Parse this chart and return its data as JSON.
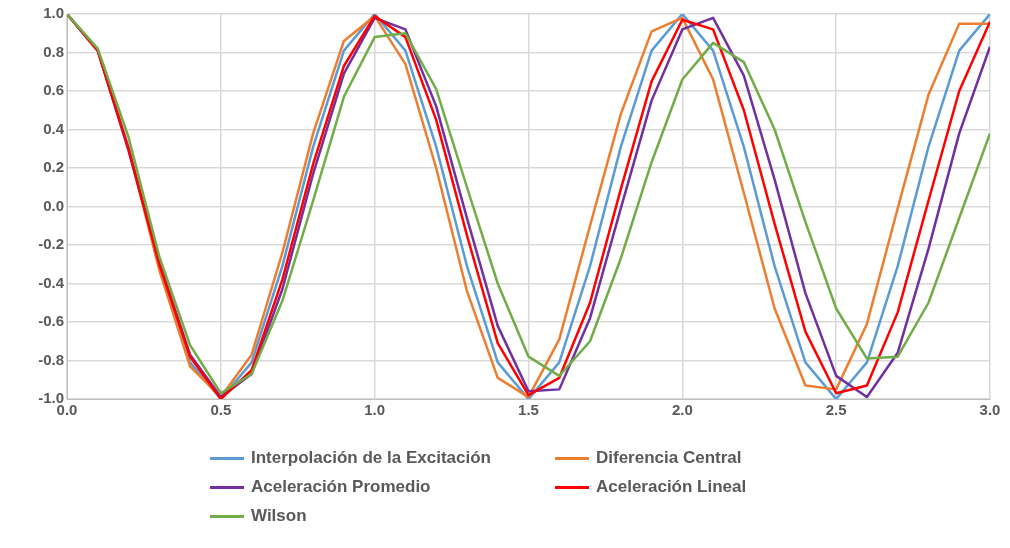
{
  "chart_data": {
    "type": "line",
    "x": [
      0,
      0.1,
      0.2,
      0.3,
      0.4,
      0.5,
      0.6,
      0.7,
      0.8,
      0.9,
      1,
      1.1,
      1.2,
      1.3,
      1.4,
      1.5,
      1.6,
      1.7,
      1.8,
      1.9,
      2,
      2.1,
      2.2,
      2.3,
      2.4,
      2.5,
      2.6,
      2.7,
      2.8,
      2.9,
      3
    ],
    "series": [
      {
        "name": "Interpolación de la Excitación",
        "color": "#5b9bd5",
        "values": [
          1,
          0.81,
          0.31,
          -0.31,
          -0.81,
          -1,
          -0.81,
          -0.31,
          0.31,
          0.81,
          1,
          0.81,
          0.31,
          -0.31,
          -0.81,
          -1,
          -0.81,
          -0.31,
          0.31,
          0.81,
          1,
          0.81,
          0.31,
          -0.31,
          -0.81,
          -1,
          -0.81,
          -0.31,
          0.31,
          0.81,
          1
        ]
      },
      {
        "name": "Diferencia Central",
        "color": "#ed7d31",
        "values": [
          1,
          0.81,
          0.3,
          -0.33,
          -0.83,
          -0.99,
          -0.77,
          -0.24,
          0.38,
          0.86,
          0.99,
          0.74,
          0.2,
          -0.44,
          -0.89,
          -0.99,
          -0.69,
          -0.1,
          0.48,
          0.91,
          0.98,
          0.66,
          0.07,
          -0.53,
          -0.93,
          -0.95,
          -0.61,
          -0.01,
          0.58,
          0.95,
          0.95
        ]
      },
      {
        "name": "Aceleración Promedio",
        "color": "#7030a0",
        "values": [
          1,
          0.81,
          0.29,
          -0.29,
          -0.77,
          -0.99,
          -0.87,
          -0.43,
          0.17,
          0.69,
          0.98,
          0.92,
          0.52,
          -0.06,
          -0.62,
          -0.96,
          -0.95,
          -0.58,
          -0.01,
          0.55,
          0.92,
          0.98,
          0.68,
          0.14,
          -0.45,
          -0.88,
          -0.99,
          -0.76,
          -0.22,
          0.38,
          0.83
        ]
      },
      {
        "name": "Aceleración Lineal",
        "color": "#ff0000",
        "values": [
          1,
          0.81,
          0.3,
          -0.3,
          -0.78,
          -1,
          -0.85,
          -0.38,
          0.22,
          0.73,
          0.99,
          0.88,
          0.45,
          -0.15,
          -0.71,
          -0.98,
          -0.89,
          -0.5,
          0.09,
          0.65,
          0.97,
          0.92,
          0.5,
          -0.09,
          -0.65,
          -0.97,
          -0.93,
          -0.55,
          0.03,
          0.6,
          0.96
        ]
      },
      {
        "name": "Wilson",
        "color": "#70ad47",
        "values": [
          1,
          0.82,
          0.36,
          -0.26,
          -0.72,
          -0.97,
          -0.87,
          -0.49,
          0.03,
          0.57,
          0.88,
          0.9,
          0.61,
          0.1,
          -0.4,
          -0.78,
          -0.88,
          -0.7,
          -0.27,
          0.23,
          0.66,
          0.85,
          0.75,
          0.4,
          -0.08,
          -0.53,
          -0.79,
          -0.78,
          -0.5,
          -0.06,
          0.38
        ]
      }
    ],
    "xlim": [
      0,
      3
    ],
    "xticks": [
      {
        "value": 0,
        "label": "0.0"
      },
      {
        "value": 0.5,
        "label": "0.5"
      },
      {
        "value": 1,
        "label": "1.0"
      },
      {
        "value": 1.5,
        "label": "1.5"
      },
      {
        "value": 2,
        "label": "2.0"
      },
      {
        "value": 2.5,
        "label": "2.5"
      },
      {
        "value": 3,
        "label": "3.0"
      }
    ],
    "ylim": [
      -1,
      1
    ],
    "yticks": [
      {
        "value": -1,
        "label": "-1.0"
      },
      {
        "value": -0.8,
        "label": "-0.8"
      },
      {
        "value": -0.6,
        "label": "-0.6"
      },
      {
        "value": -0.4,
        "label": "-0.4"
      },
      {
        "value": -0.2,
        "label": "-0.2"
      },
      {
        "value": 0,
        "label": "0.0"
      },
      {
        "value": 0.2,
        "label": "0.2"
      },
      {
        "value": 0.4,
        "label": "0.4"
      },
      {
        "value": 0.6,
        "label": "0.6"
      },
      {
        "value": 0.8,
        "label": "0.8"
      },
      {
        "value": 1,
        "label": "1.0"
      }
    ],
    "grid": true,
    "legend": "bottom",
    "marker": "none",
    "line_style": "solid"
  }
}
